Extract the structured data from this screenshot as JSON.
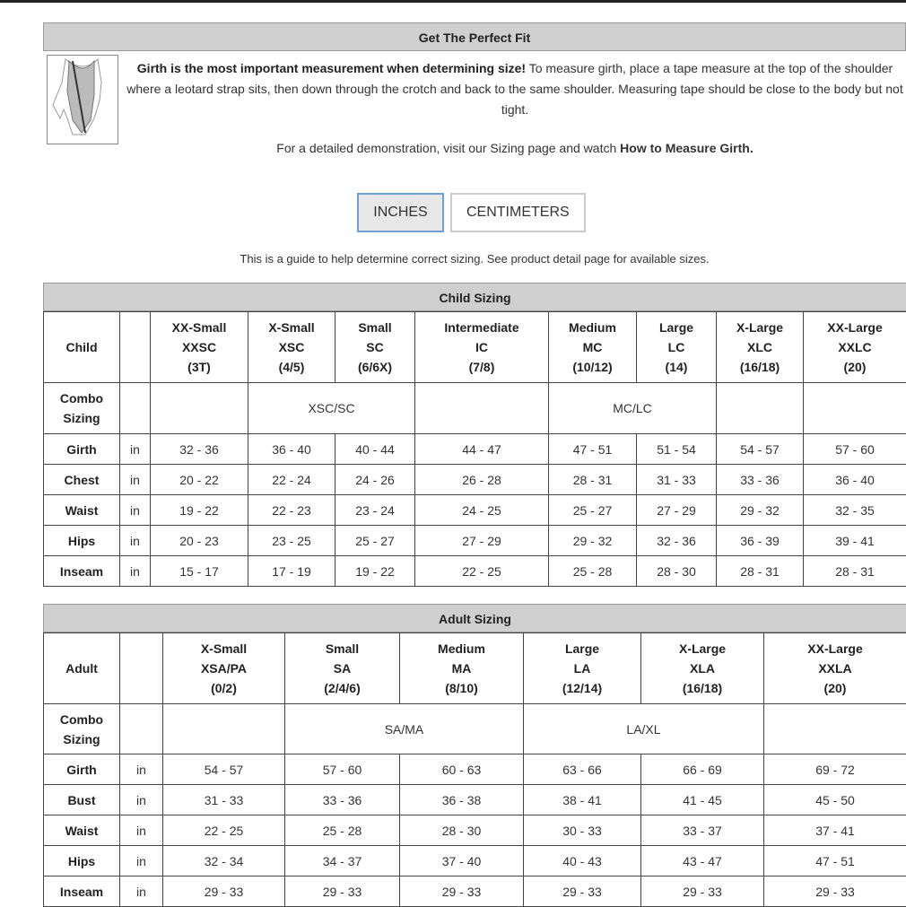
{
  "fit": {
    "title": "Get The Perfect Fit",
    "bold_lead": "Girth is the most important measurement when determining size!",
    "body": " To measure girth, place a tape measure at the top of the shoulder where a leotard strap sits, then down through the crotch and back to the same shoulder. Measuring tape should be close to the body but not tight.",
    "demo_prefix": "For a detailed demonstration, visit our Sizing page and watch ",
    "demo_link": "How to Measure Girth.",
    "image_icon": "leotard-girth-diagram"
  },
  "units": {
    "inches": "INCHES",
    "centimeters": "CENTIMETERS",
    "selected": "INCHES",
    "accent": "#6e9fd6"
  },
  "guide": "This is a guide to help determine correct sizing. See product detail page for available sizes.",
  "child": {
    "title": "Child Sizing",
    "corner": "Child",
    "sizes": [
      [
        "XX-Small",
        "XXSC",
        "(3T)"
      ],
      [
        "X-Small",
        "XSC",
        "(4/5)"
      ],
      [
        "Small",
        "SC",
        "(6/6X)"
      ],
      [
        "Intermediate",
        "IC",
        "(7/8)"
      ],
      [
        "Medium",
        "MC",
        "(10/12)"
      ],
      [
        "Large",
        "LC",
        "(14)"
      ],
      [
        "X-Large",
        "XLC",
        "(16/18)"
      ],
      [
        "XX-Large",
        "XXLC",
        "(20)"
      ]
    ],
    "combo_label": [
      "Combo",
      "Sizing"
    ],
    "combo": [
      [
        "",
        1
      ],
      [
        "XSC/SC",
        2
      ],
      [
        "",
        1
      ],
      [
        "MC/LC",
        2
      ],
      [
        "",
        1
      ],
      [
        "",
        1
      ]
    ],
    "rows": [
      {
        "label": "Girth",
        "unit": "in",
        "values": [
          "32 - 36",
          "36 - 40",
          "40 - 44",
          "44 - 47",
          "47 - 51",
          "51 - 54",
          "54 - 57",
          "57 - 60"
        ]
      },
      {
        "label": "Chest",
        "unit": "in",
        "values": [
          "20 - 22",
          "22 - 24",
          "24 - 26",
          "26 - 28",
          "28 - 31",
          "31 - 33",
          "33 - 36",
          "36 - 40"
        ]
      },
      {
        "label": "Waist",
        "unit": "in",
        "values": [
          "19 - 22",
          "22 - 23",
          "23 - 24",
          "24 - 25",
          "25 - 27",
          "27 - 29",
          "29 - 32",
          "32 - 35"
        ]
      },
      {
        "label": "Hips",
        "unit": "in",
        "values": [
          "20 - 23",
          "23 - 25",
          "25 - 27",
          "27 - 29",
          "29 - 32",
          "32 - 36",
          "36 - 39",
          "39 - 41"
        ]
      },
      {
        "label": "Inseam",
        "unit": "in",
        "values": [
          "15 - 17",
          "17 - 19",
          "19 - 22",
          "22 - 25",
          "25 - 28",
          "28 - 30",
          "28 - 31",
          "28 - 31"
        ]
      }
    ]
  },
  "adult": {
    "title": "Adult Sizing",
    "corner": "Adult",
    "sizes": [
      [
        "X-Small",
        "XSA/PA",
        "(0/2)"
      ],
      [
        "Small",
        "SA",
        "(2/4/6)"
      ],
      [
        "Medium",
        "MA",
        "(8/10)"
      ],
      [
        "Large",
        "LA",
        "(12/14)"
      ],
      [
        "X-Large",
        "XLA",
        "(16/18)"
      ],
      [
        "XX-Large",
        "XXLA",
        "(20)"
      ]
    ],
    "combo_label": [
      "Combo",
      "Sizing"
    ],
    "combo": [
      [
        "",
        1
      ],
      [
        "SA/MA",
        2
      ],
      [
        "LA/XL",
        2
      ],
      [
        "",
        1
      ]
    ],
    "rows": [
      {
        "label": "Girth",
        "unit": "in",
        "values": [
          "54 - 57",
          "57 - 60",
          "60 - 63",
          "63 - 66",
          "66 - 69",
          "69 - 72"
        ]
      },
      {
        "label": "Bust",
        "unit": "in",
        "values": [
          "31 - 33",
          "33 - 36",
          "36 - 38",
          "38 - 41",
          "41 - 45",
          "45 - 50"
        ]
      },
      {
        "label": "Waist",
        "unit": "in",
        "values": [
          "22 - 25",
          "25 - 28",
          "28 - 30",
          "30 - 33",
          "33 - 37",
          "37 - 41"
        ]
      },
      {
        "label": "Hips",
        "unit": "in",
        "values": [
          "32 - 34",
          "34 - 37",
          "37 - 40",
          "40 - 43",
          "43 - 47",
          "47 - 51"
        ]
      },
      {
        "label": "Inseam",
        "unit": "in",
        "values": [
          "29 - 33",
          "29 - 33",
          "29 - 33",
          "29 - 33",
          "29 - 33",
          "29 - 33"
        ]
      }
    ]
  }
}
